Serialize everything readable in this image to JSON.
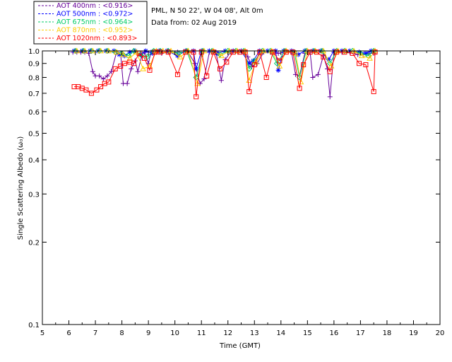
{
  "chart_data": {
    "type": "scatter",
    "header": {
      "site": "PML, N 50 22', W 04 08', Alt 0m",
      "date": "Data from: 02 Aug 2019"
    },
    "xlabel": "Time (GMT)",
    "ylabel": "Single Scattering Albedo (ω₀)",
    "xlim": [
      5,
      20
    ],
    "ylim": [
      0.1,
      1.0
    ],
    "yscale": "log",
    "x_ticks": [
      "5",
      "6",
      "7",
      "8",
      "9",
      "10",
      "11",
      "12",
      "13",
      "14",
      "15",
      "16",
      "17",
      "18",
      "19",
      "20"
    ],
    "y_ticks": [
      "1.0",
      "0.9",
      "0.8",
      "0.7",
      "0.6",
      "0.5",
      "0.4",
      "0.3",
      "0.2",
      "0.1"
    ],
    "legend_position": "top-left",
    "series": [
      {
        "name": "AOT  400nm : <0.916>",
        "color": "#660099",
        "marker": "plus",
        "points": [
          [
            6.15,
            0.99
          ],
          [
            6.3,
            0.99
          ],
          [
            6.45,
            0.99
          ],
          [
            6.6,
            0.99
          ],
          [
            6.75,
            0.98
          ],
          [
            6.9,
            0.84
          ],
          [
            7.0,
            0.81
          ],
          [
            7.15,
            0.81
          ],
          [
            7.3,
            0.79
          ],
          [
            7.45,
            0.81
          ],
          [
            7.6,
            0.84
          ],
          [
            7.8,
            0.99
          ],
          [
            7.95,
            0.98
          ],
          [
            8.05,
            0.76
          ],
          [
            8.2,
            0.76
          ],
          [
            8.35,
            0.86
          ],
          [
            8.5,
            0.92
          ],
          [
            8.6,
            0.84
          ],
          [
            8.75,
            0.96
          ],
          [
            8.85,
            0.99
          ],
          [
            9.0,
            0.9
          ],
          [
            9.1,
            0.99
          ],
          [
            9.3,
            0.99
          ],
          [
            9.5,
            0.98
          ],
          [
            9.8,
            0.99
          ],
          [
            10.1,
            0.99
          ],
          [
            10.5,
            0.99
          ],
          [
            10.75,
            0.9
          ],
          [
            10.95,
            0.76
          ],
          [
            11.1,
            0.79
          ],
          [
            11.3,
            0.99
          ],
          [
            11.55,
            0.99
          ],
          [
            11.75,
            0.78
          ],
          [
            11.9,
            0.93
          ],
          [
            12.1,
            0.99
          ],
          [
            12.4,
            0.99
          ],
          [
            12.6,
            0.99
          ],
          [
            12.75,
            0.95
          ],
          [
            12.9,
            0.88
          ],
          [
            13.1,
            0.9
          ],
          [
            13.35,
            0.99
          ],
          [
            13.6,
            0.99
          ],
          [
            13.9,
            0.98
          ],
          [
            14.15,
            0.99
          ],
          [
            14.4,
            0.99
          ],
          [
            14.55,
            0.82
          ],
          [
            14.7,
            0.81
          ],
          [
            14.9,
            0.98
          ],
          [
            15.1,
            0.99
          ],
          [
            15.2,
            0.8
          ],
          [
            15.4,
            0.82
          ],
          [
            15.6,
            0.96
          ],
          [
            15.75,
            0.86
          ],
          [
            15.85,
            0.68
          ],
          [
            16.0,
            0.99
          ],
          [
            16.3,
            0.99
          ],
          [
            16.6,
            0.99
          ],
          [
            16.9,
            0.97
          ],
          [
            17.1,
            0.97
          ],
          [
            17.3,
            0.98
          ],
          [
            17.5,
            0.98
          ]
        ]
      },
      {
        "name": "AOT  500nm : <0.972>",
        "color": "#0000ff",
        "marker": "asterisk",
        "points": [
          [
            6.2,
            1.0
          ],
          [
            6.5,
            1.0
          ],
          [
            6.8,
            1.0
          ],
          [
            7.1,
            1.0
          ],
          [
            7.4,
            1.0
          ],
          [
            7.7,
            1.0
          ],
          [
            7.9,
            0.97
          ],
          [
            8.1,
            0.96
          ],
          [
            8.3,
            0.99
          ],
          [
            8.5,
            1.0
          ],
          [
            8.7,
            0.97
          ],
          [
            8.9,
            1.0
          ],
          [
            9.15,
            0.98
          ],
          [
            9.4,
            1.0
          ],
          [
            9.7,
            1.0
          ],
          [
            10.1,
            0.96
          ],
          [
            10.4,
            1.0
          ],
          [
            10.7,
            1.0
          ],
          [
            10.8,
            0.86
          ],
          [
            11.0,
            1.0
          ],
          [
            11.3,
            1.0
          ],
          [
            11.6,
            0.98
          ],
          [
            11.9,
            1.0
          ],
          [
            12.2,
            1.0
          ],
          [
            12.5,
            1.0
          ],
          [
            12.8,
            0.9
          ],
          [
            12.95,
            0.92
          ],
          [
            13.2,
            1.0
          ],
          [
            13.5,
            1.0
          ],
          [
            13.8,
            1.0
          ],
          [
            13.9,
            0.85
          ],
          [
            14.1,
            1.0
          ],
          [
            14.4,
            1.0
          ],
          [
            14.65,
            0.97
          ],
          [
            14.9,
            1.0
          ],
          [
            15.2,
            1.0
          ],
          [
            15.5,
            1.0
          ],
          [
            15.8,
            0.93
          ],
          [
            16.0,
            1.0
          ],
          [
            16.3,
            1.0
          ],
          [
            16.6,
            1.0
          ],
          [
            16.95,
            0.99
          ],
          [
            17.2,
            0.98
          ],
          [
            17.4,
            1.0
          ]
        ]
      },
      {
        "name": "AOT  675nm : <0.964>",
        "color": "#00cc66",
        "marker": "diamond",
        "points": [
          [
            6.25,
            1.0
          ],
          [
            6.55,
            1.0
          ],
          [
            6.85,
            1.0
          ],
          [
            7.15,
            1.0
          ],
          [
            7.45,
            1.0
          ],
          [
            7.75,
            0.99
          ],
          [
            8.0,
            0.98
          ],
          [
            8.25,
            0.96
          ],
          [
            8.45,
            1.0
          ],
          [
            8.7,
            0.97
          ],
          [
            8.95,
            0.95
          ],
          [
            9.2,
            1.0
          ],
          [
            9.45,
            1.0
          ],
          [
            9.75,
            1.0
          ],
          [
            10.15,
            0.98
          ],
          [
            10.45,
            1.0
          ],
          [
            10.8,
            0.8
          ],
          [
            11.05,
            1.0
          ],
          [
            11.4,
            1.0
          ],
          [
            11.7,
            0.97
          ],
          [
            12.0,
            1.0
          ],
          [
            12.3,
            1.0
          ],
          [
            12.6,
            1.0
          ],
          [
            12.8,
            0.86
          ],
          [
            13.0,
            0.92
          ],
          [
            13.3,
            1.0
          ],
          [
            13.6,
            1.0
          ],
          [
            13.85,
            0.9
          ],
          [
            14.15,
            1.0
          ],
          [
            14.5,
            0.99
          ],
          [
            14.7,
            0.8
          ],
          [
            14.95,
            1.0
          ],
          [
            15.25,
            1.0
          ],
          [
            15.55,
            1.0
          ],
          [
            15.85,
            0.9
          ],
          [
            16.1,
            1.0
          ],
          [
            16.4,
            1.0
          ],
          [
            16.7,
            1.0
          ],
          [
            17.0,
            0.98
          ],
          [
            17.3,
            0.96
          ],
          [
            17.5,
            1.0
          ]
        ]
      },
      {
        "name": "AOT  870nm : <0.952>",
        "color": "#ffcc00",
        "marker": "triangle",
        "points": [
          [
            6.3,
            1.0
          ],
          [
            6.6,
            1.0
          ],
          [
            6.9,
            1.0
          ],
          [
            7.2,
            1.0
          ],
          [
            7.5,
            1.0
          ],
          [
            7.8,
            0.99
          ],
          [
            8.05,
            0.97
          ],
          [
            8.3,
            0.94
          ],
          [
            8.55,
            0.99
          ],
          [
            8.8,
            0.86
          ],
          [
            9.05,
            0.88
          ],
          [
            9.3,
            1.0
          ],
          [
            9.55,
            1.0
          ],
          [
            9.85,
            1.0
          ],
          [
            10.2,
            0.95
          ],
          [
            10.5,
            1.0
          ],
          [
            10.85,
            0.76
          ],
          [
            11.1,
            1.0
          ],
          [
            11.45,
            1.0
          ],
          [
            11.75,
            0.96
          ],
          [
            12.05,
            1.0
          ],
          [
            12.35,
            1.0
          ],
          [
            12.65,
            1.0
          ],
          [
            12.8,
            0.78
          ],
          [
            13.05,
            0.91
          ],
          [
            13.35,
            1.0
          ],
          [
            13.65,
            1.0
          ],
          [
            13.95,
            0.88
          ],
          [
            14.2,
            1.0
          ],
          [
            14.55,
            0.98
          ],
          [
            14.75,
            0.77
          ],
          [
            15.0,
            1.0
          ],
          [
            15.3,
            1.0
          ],
          [
            15.6,
            1.0
          ],
          [
            15.9,
            0.88
          ],
          [
            16.15,
            1.0
          ],
          [
            16.45,
            1.0
          ],
          [
            16.75,
            1.0
          ],
          [
            17.05,
            0.96
          ],
          [
            17.35,
            0.94
          ],
          [
            17.55,
            1.0
          ]
        ]
      },
      {
        "name": "AOT 1020nm : <0.893>",
        "color": "#ff0000",
        "marker": "square",
        "points": [
          [
            6.2,
            0.74
          ],
          [
            6.35,
            0.74
          ],
          [
            6.5,
            0.73
          ],
          [
            6.65,
            0.72
          ],
          [
            6.85,
            0.7
          ],
          [
            7.05,
            0.72
          ],
          [
            7.2,
            0.74
          ],
          [
            7.35,
            0.76
          ],
          [
            7.5,
            0.77
          ],
          [
            7.75,
            0.86
          ],
          [
            7.95,
            0.88
          ],
          [
            8.1,
            0.9
          ],
          [
            8.3,
            0.91
          ],
          [
            8.45,
            0.9
          ],
          [
            8.65,
            0.98
          ],
          [
            8.85,
            0.94
          ],
          [
            9.05,
            0.85
          ],
          [
            9.25,
            0.99
          ],
          [
            9.45,
            0.99
          ],
          [
            9.75,
            0.99
          ],
          [
            10.1,
            0.82
          ],
          [
            10.4,
            0.99
          ],
          [
            10.7,
            0.99
          ],
          [
            10.8,
            0.68
          ],
          [
            11.0,
            0.99
          ],
          [
            11.2,
            0.81
          ],
          [
            11.45,
            0.99
          ],
          [
            11.7,
            0.86
          ],
          [
            11.95,
            0.91
          ],
          [
            12.2,
            0.99
          ],
          [
            12.45,
            0.99
          ],
          [
            12.65,
            0.99
          ],
          [
            12.8,
            0.71
          ],
          [
            13.0,
            0.89
          ],
          [
            13.2,
            0.99
          ],
          [
            13.45,
            0.8
          ],
          [
            13.7,
            0.99
          ],
          [
            13.95,
            0.92
          ],
          [
            14.2,
            0.99
          ],
          [
            14.45,
            0.99
          ],
          [
            14.7,
            0.73
          ],
          [
            14.85,
            0.89
          ],
          [
            15.1,
            0.99
          ],
          [
            15.35,
            0.99
          ],
          [
            15.6,
            0.95
          ],
          [
            15.85,
            0.84
          ],
          [
            16.1,
            0.99
          ],
          [
            16.4,
            0.99
          ],
          [
            16.7,
            0.98
          ],
          [
            16.95,
            0.9
          ],
          [
            17.2,
            0.89
          ],
          [
            17.5,
            0.71
          ],
          [
            17.55,
            0.99
          ]
        ]
      }
    ]
  }
}
